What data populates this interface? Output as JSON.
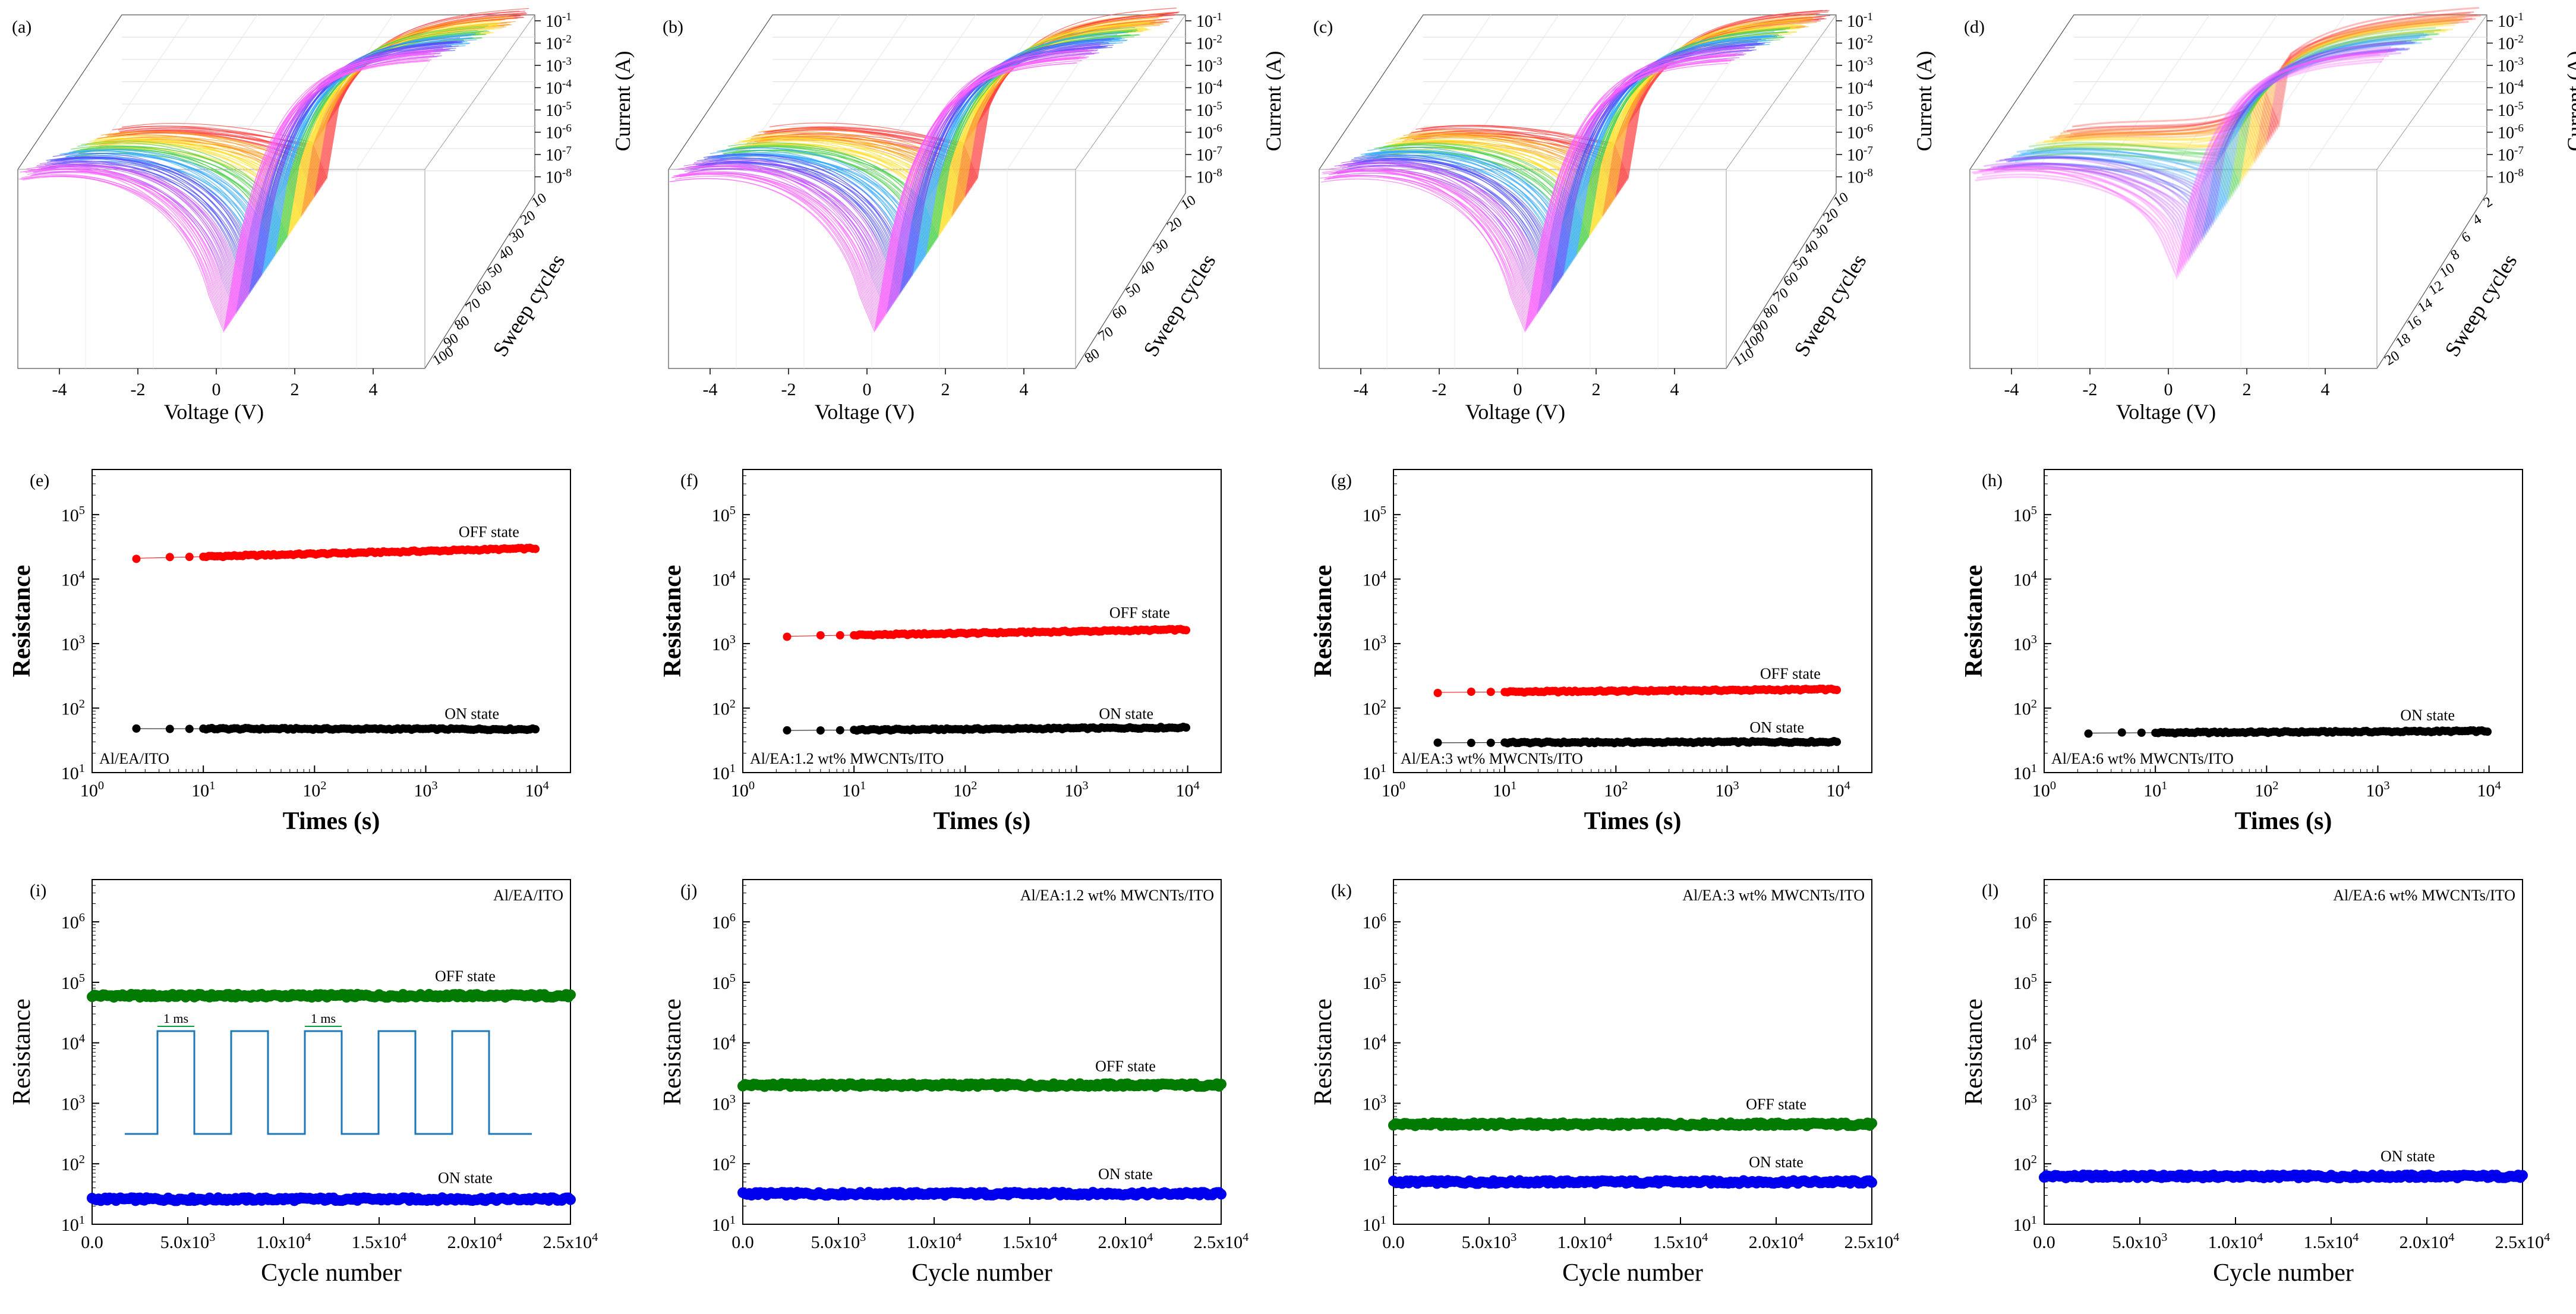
{
  "figure": {
    "panels_3d": [
      {
        "label": "(a)",
        "voltage_ticks": [
          "-4",
          "-2",
          "0",
          "2",
          "4"
        ],
        "xlabel": "Voltage (V)",
        "ylabel": "Current (A)",
        "current_ticks": [
          "10-1",
          "10-2",
          "10-3",
          "10-4",
          "10-5",
          "10-6",
          "10-7",
          "10-8"
        ],
        "cycles_label": "Sweep cycles",
        "cycle_ticks": [
          "10",
          "20",
          "30",
          "40",
          "50",
          "60",
          "70",
          "80",
          "90",
          "100"
        ],
        "bright_fill": false
      },
      {
        "label": "(b)",
        "voltage_ticks": [
          "-4",
          "-2",
          "0",
          "2",
          "4"
        ],
        "xlabel": "Voltage (V)",
        "ylabel": "Current (A)",
        "current_ticks": [
          "10-1",
          "10-2",
          "10-3",
          "10-4",
          "10-5",
          "10-6",
          "10-7",
          "10-8"
        ],
        "cycles_label": "Sweep cycles",
        "cycle_ticks": [
          "10",
          "20",
          "30",
          "40",
          "50",
          "60",
          "70",
          "80"
        ],
        "bright_fill": false
      },
      {
        "label": "(c)",
        "voltage_ticks": [
          "-4",
          "-2",
          "0",
          "2",
          "4"
        ],
        "xlabel": "Voltage (V)",
        "ylabel": "Current (A)",
        "current_ticks": [
          "10-1",
          "10-2",
          "10-3",
          "10-4",
          "10-5",
          "10-6",
          "10-7",
          "10-8"
        ],
        "cycles_label": "Sweep cycles",
        "cycle_ticks": [
          "10",
          "20",
          "30",
          "40",
          "50",
          "60",
          "70",
          "80",
          "90",
          "100",
          "110"
        ],
        "bright_fill": false
      },
      {
        "label": "(d)",
        "voltage_ticks": [
          "-4",
          "-2",
          "0",
          "2",
          "4"
        ],
        "xlabel": "Voltage (V)",
        "ylabel": "Current (A)",
        "current_ticks": [
          "10-1",
          "10-2",
          "10-3",
          "10-4",
          "10-5",
          "10-6",
          "10-7",
          "10-8"
        ],
        "cycles_label": "Sweep cycles",
        "cycle_ticks": [
          "2",
          "4",
          "6",
          "8",
          "10",
          "12",
          "14",
          "16",
          "18",
          "20"
        ],
        "bright_fill": true
      }
    ],
    "rainbow": [
      "#ff4040",
      "#ff9a1e",
      "#ffe028",
      "#4fd24f",
      "#33aaff",
      "#5050ff",
      "#c050ff",
      "#ff60ff"
    ]
  },
  "chart_data": [
    {
      "type": "line",
      "panel": "e",
      "label": "(e)",
      "xscale": "log",
      "yscale": "log",
      "xlim": [
        1,
        20000
      ],
      "ylim": [
        10,
        500000
      ],
      "xlabel": "Times (s)",
      "ylabel": "Resistance",
      "xticks": [
        "10^0",
        "10^1",
        "10^2",
        "10^3",
        "10^4"
      ],
      "yticks": [
        "10^1",
        "10^2",
        "10^3",
        "10^4",
        "10^5"
      ],
      "device": "Al/EA/ITO",
      "series": [
        {
          "name": "OFF state",
          "color": "#ff0000",
          "start": 21000,
          "end": 30000,
          "x_start": 2.5,
          "x_end": 10000,
          "label_x": 3700,
          "label_y": 45000
        },
        {
          "name": "ON state",
          "color": "#000000",
          "start": 48,
          "end": 47,
          "x_start": 2.5,
          "x_end": 10000,
          "label_x": 2600,
          "label_y": 68
        }
      ]
    },
    {
      "type": "line",
      "panel": "f",
      "label": "(f)",
      "xscale": "log",
      "yscale": "log",
      "xlim": [
        1,
        20000
      ],
      "ylim": [
        10,
        500000
      ],
      "xlabel": "Times (s)",
      "ylabel": "Resistance",
      "xticks": [
        "10^0",
        "10^1",
        "10^2",
        "10^3",
        "10^4"
      ],
      "yticks": [
        "10^1",
        "10^2",
        "10^3",
        "10^4",
        "10^5"
      ],
      "device": "Al/EA:1.2 wt% MWCNTs/ITO",
      "series": [
        {
          "name": "OFF state",
          "color": "#ff0000",
          "start": 1300,
          "end": 1650,
          "x_start": 2.5,
          "x_end": 10000,
          "label_x": 3700,
          "label_y": 2500
        },
        {
          "name": "ON state",
          "color": "#000000",
          "start": 45,
          "end": 50,
          "x_start": 2.5,
          "x_end": 10000,
          "label_x": 2800,
          "label_y": 68
        }
      ]
    },
    {
      "type": "line",
      "panel": "g",
      "label": "(g)",
      "xscale": "log",
      "yscale": "log",
      "xlim": [
        1,
        20000
      ],
      "ylim": [
        10,
        500000
      ],
      "xlabel": "Times (s)",
      "ylabel": "Resistance",
      "xticks": [
        "10^0",
        "10^1",
        "10^2",
        "10^3",
        "10^4"
      ],
      "yticks": [
        "10^1",
        "10^2",
        "10^3",
        "10^4",
        "10^5"
      ],
      "device": "Al/EA:3 wt% MWCNTs/ITO",
      "series": [
        {
          "name": "OFF state",
          "color": "#ff0000",
          "start": 175,
          "end": 195,
          "x_start": 2.5,
          "x_end": 10000,
          "label_x": 3700,
          "label_y": 285
        },
        {
          "name": "ON state",
          "color": "#000000",
          "start": 29,
          "end": 30,
          "x_start": 2.5,
          "x_end": 10000,
          "label_x": 2800,
          "label_y": 42
        }
      ]
    },
    {
      "type": "line",
      "panel": "h",
      "label": "(h)",
      "xscale": "log",
      "yscale": "log",
      "xlim": [
        1,
        20000
      ],
      "ylim": [
        10,
        500000
      ],
      "xlabel": "Times (s)",
      "ylabel": "Resistance",
      "xticks": [
        "10^0",
        "10^1",
        "10^2",
        "10^3",
        "10^4"
      ],
      "yticks": [
        "10^1",
        "10^2",
        "10^3",
        "10^4",
        "10^5"
      ],
      "device": "Al/EA:6 wt% MWCNTs/ITO",
      "series": [
        {
          "name": "ON state",
          "color": "#000000",
          "start": 41,
          "end": 44,
          "x_start": 2.5,
          "x_end": 10000,
          "label_x": 2800,
          "label_y": 65
        }
      ]
    },
    {
      "type": "scatter",
      "panel": "i",
      "label": "(i)",
      "xscale": "linear",
      "yscale": "log",
      "xlim": [
        0,
        25000
      ],
      "ylim": [
        10,
        5000000
      ],
      "xlabel": "Cycle number",
      "ylabel": "Resistance",
      "xticks": [
        "0.0",
        "5.0x10^3",
        "1.0x10^4",
        "1.5x10^4",
        "2.0x10^4",
        "2.5x10^4"
      ],
      "yticks": [
        "10^1",
        "10^2",
        "10^3",
        "10^4",
        "10^5",
        "10^6"
      ],
      "device": "Al/EA/ITO",
      "series": [
        {
          "name": "OFF state",
          "color": "#007a00",
          "value": 60000,
          "label_x": 19500,
          "label_y": 105000
        },
        {
          "name": "ON state",
          "color": "#0000ee",
          "value": 26,
          "label_x": 19500,
          "label_y": 48
        }
      ],
      "inset": {
        "pulse_label": "1 ms",
        "color": "#1f78b4"
      }
    },
    {
      "type": "scatter",
      "panel": "j",
      "label": "(j)",
      "xscale": "linear",
      "yscale": "log",
      "xlim": [
        0,
        25000
      ],
      "ylim": [
        10,
        5000000
      ],
      "xlabel": "Cycle number",
      "ylabel": "Resistance",
      "xticks": [
        "0.0",
        "5.0x10^3",
        "1.0x10^4",
        "1.5x10^4",
        "2.0x10^4",
        "2.5x10^4"
      ],
      "yticks": [
        "10^1",
        "10^2",
        "10^3",
        "10^4",
        "10^5",
        "10^6"
      ],
      "device": "Al/EA:1.2 wt% MWCNTs/ITO",
      "series": [
        {
          "name": "OFF state",
          "color": "#007a00",
          "value": 2000,
          "label_x": 20000,
          "label_y": 3400
        },
        {
          "name": "ON state",
          "color": "#0000ee",
          "value": 32,
          "label_x": 20000,
          "label_y": 56
        }
      ]
    },
    {
      "type": "scatter",
      "panel": "k",
      "label": "(k)",
      "xscale": "linear",
      "yscale": "log",
      "xlim": [
        0,
        25000
      ],
      "ylim": [
        10,
        5000000
      ],
      "xlabel": "Cycle number",
      "ylabel": "Resistance",
      "xticks": [
        "0.0",
        "5.0x10^3",
        "1.0x10^4",
        "1.5x10^4",
        "2.0x10^4",
        "2.5x10^4"
      ],
      "yticks": [
        "10^1",
        "10^2",
        "10^3",
        "10^4",
        "10^5",
        "10^6"
      ],
      "device": "Al/EA:3 wt% MWCNTs/ITO",
      "series": [
        {
          "name": "OFF state",
          "color": "#007a00",
          "value": 450,
          "label_x": 20000,
          "label_y": 800
        },
        {
          "name": "ON state",
          "color": "#0000ee",
          "value": 50,
          "label_x": 20000,
          "label_y": 88
        }
      ]
    },
    {
      "type": "scatter",
      "panel": "l",
      "label": "(l)",
      "xscale": "linear",
      "yscale": "log",
      "xlim": [
        0,
        25000
      ],
      "ylim": [
        10,
        5000000
      ],
      "xlabel": "Cycle number",
      "ylabel": "Resistance",
      "xticks": [
        "0.0",
        "5.0x10^3",
        "1.0x10^4",
        "1.5x10^4",
        "2.0x10^4",
        "2.5x10^4"
      ],
      "yticks": [
        "10^1",
        "10^2",
        "10^3",
        "10^4",
        "10^5",
        "10^6"
      ],
      "device": "Al/EA:6 wt% MWCNTs/ITO",
      "series": [
        {
          "name": "ON state",
          "color": "#0000ee",
          "value": 62,
          "label_x": 19000,
          "label_y": 110
        }
      ]
    }
  ]
}
